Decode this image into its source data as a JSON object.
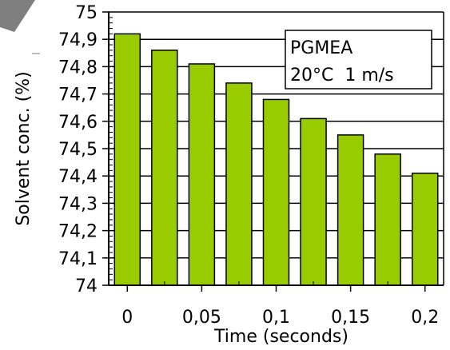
{
  "chart_data": {
    "type": "bar",
    "title": "",
    "xlabel": "Time (seconds)",
    "ylabel": "Solvent conc. (%)",
    "x": [
      0,
      0.025,
      0.05,
      0.075,
      0.1,
      0.125,
      0.15,
      0.175,
      0.2
    ],
    "values": [
      74.92,
      74.86,
      74.81,
      74.74,
      74.68,
      74.61,
      74.55,
      74.48,
      74.41
    ],
    "ylim": [
      74,
      75
    ],
    "xlim": [
      -0.0125,
      0.2125
    ],
    "yticks": [
      74,
      74.1,
      74.2,
      74.3,
      74.4,
      74.5,
      74.6,
      74.7,
      74.8,
      74.9,
      75
    ],
    "ytick_labels": [
      "74",
      "74,1",
      "74,2",
      "74,3",
      "74,4",
      "74,5",
      "74,6",
      "74,7",
      "74,8",
      "74,9",
      "75"
    ],
    "xticks": [
      0,
      0.05,
      0.1,
      0.15,
      0.2
    ],
    "xtick_labels": [
      "0",
      "0,05",
      "0,1",
      "0,15",
      "0,2"
    ],
    "grid": "horizontal",
    "legend": {
      "placement": "top-right",
      "lines": [
        "PGMEA",
        "20°C  1 m/s"
      ]
    },
    "colors": {
      "bar_fill": "#99cc00",
      "bar_stroke": "#000000",
      "grid": "#000000",
      "corner_arrow": "#7f7f7f"
    }
  }
}
